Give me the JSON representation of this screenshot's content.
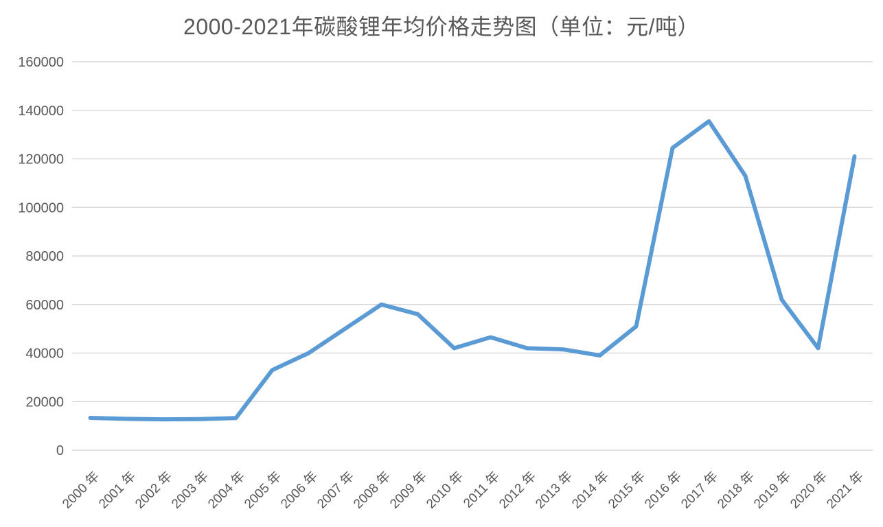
{
  "chart_data": {
    "type": "line",
    "title": "2000-2021年碳酸锂年均价格走势图（单位：元/吨）",
    "xlabel": "",
    "ylabel": "",
    "categories": [
      "2000 年",
      "2001 年",
      "2002 年",
      "2003 年",
      "2004 年",
      "2005 年",
      "2006 年",
      "2007 年",
      "2008 年",
      "2009 年",
      "2010 年",
      "2011 年",
      "2012 年",
      "2013 年",
      "2014 年",
      "2015 年",
      "2016 年",
      "2017 年",
      "2018 年",
      "2019 年",
      "2020 年",
      "2021 年"
    ],
    "values": [
      13300,
      12900,
      12700,
      12800,
      13200,
      33000,
      40000,
      50000,
      60000,
      56000,
      42000,
      46500,
      42000,
      41500,
      39000,
      51000,
      124500,
      135500,
      113000,
      62000,
      42000,
      121000
    ],
    "y_ticks": [
      0,
      20000,
      40000,
      60000,
      80000,
      100000,
      120000,
      140000,
      160000
    ],
    "ylim": [
      0,
      160000
    ],
    "grid": true,
    "legend_position": "none",
    "colors": {
      "line": "#5B9BD5",
      "text": "#595959",
      "gridline": "#D9D9D9",
      "background": "#FFFFFF"
    }
  }
}
